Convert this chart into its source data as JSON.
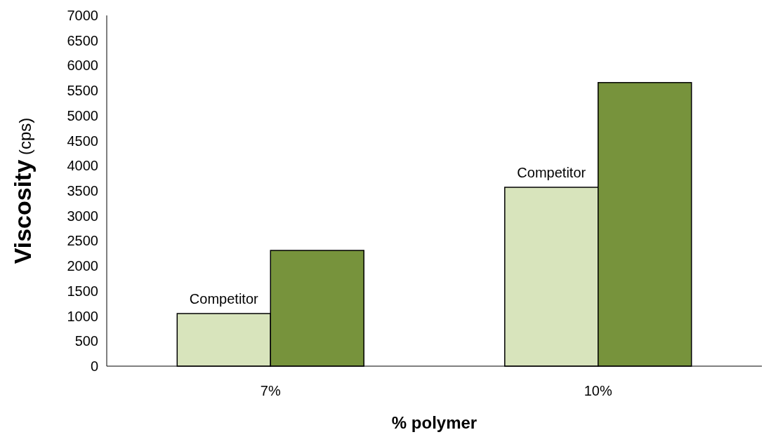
{
  "chart_data": {
    "type": "bar",
    "xlabel": "% polymer",
    "ylabel": "Viscosity (cps)",
    "categories": [
      "7%",
      "10%"
    ],
    "series": [
      {
        "name": "Competitor",
        "color": "#d8e4bc",
        "values": [
          1050,
          3570
        ]
      },
      {
        "color": "#77933c",
        "values": [
          2310,
          5660
        ]
      }
    ],
    "ylim": [
      0,
      7000
    ],
    "yticks": [
      0,
      500,
      1000,
      1500,
      2000,
      2500,
      3000,
      3500,
      4000,
      4500,
      5000,
      5500,
      6000,
      6500,
      7000
    ],
    "grid": false
  }
}
